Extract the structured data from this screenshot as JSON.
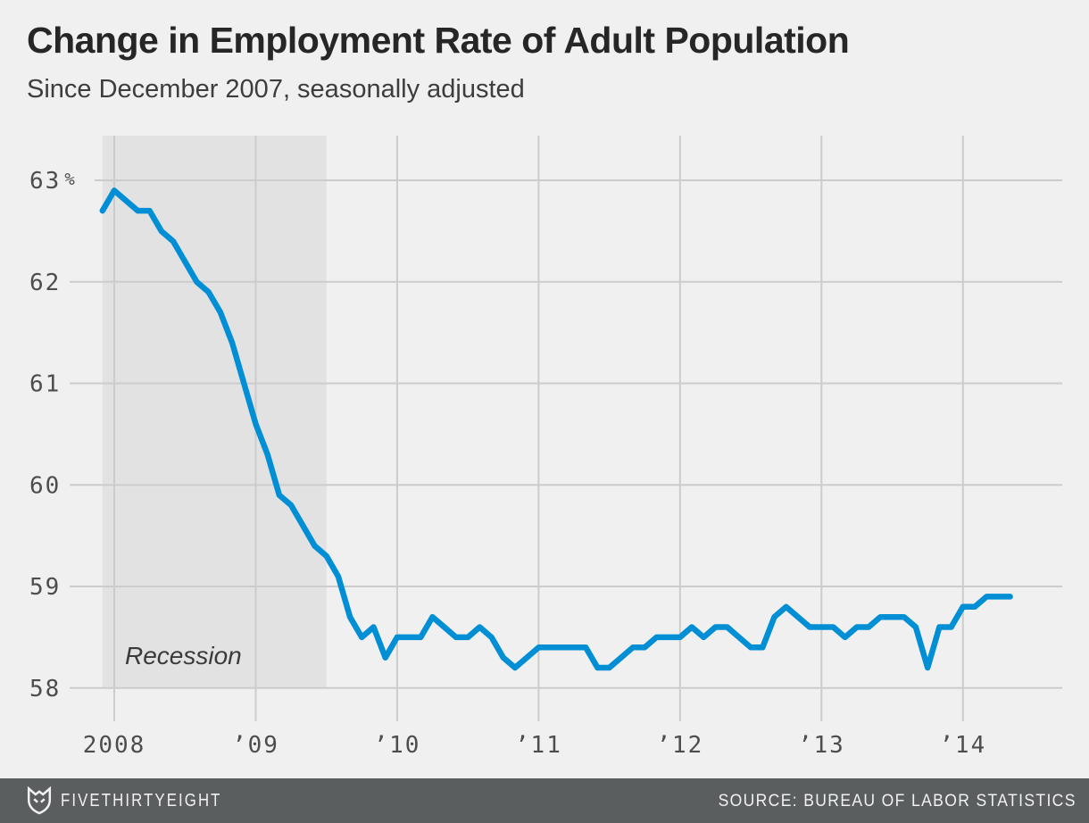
{
  "header": {
    "title": "Change in Employment Rate of Adult Population",
    "subtitle": "Since December 2007, seasonally adjusted"
  },
  "chart_data": {
    "type": "line",
    "title": "Change in Employment Rate of Adult Population",
    "subtitle": "Since December 2007, seasonally adjusted",
    "unit": "%",
    "x_interval": "monthly",
    "x_start": "2007-12",
    "x_end": "2014-05",
    "values": [
      62.7,
      62.9,
      62.8,
      62.7,
      62.7,
      62.5,
      62.4,
      62.2,
      62.0,
      61.9,
      61.7,
      61.4,
      61.0,
      60.6,
      60.3,
      59.9,
      59.8,
      59.6,
      59.4,
      59.3,
      59.1,
      58.7,
      58.5,
      58.6,
      58.3,
      58.5,
      58.5,
      58.5,
      58.7,
      58.6,
      58.5,
      58.5,
      58.6,
      58.5,
      58.3,
      58.2,
      58.3,
      58.4,
      58.4,
      58.4,
      58.4,
      58.4,
      58.2,
      58.2,
      58.3,
      58.4,
      58.4,
      58.5,
      58.5,
      58.5,
      58.6,
      58.5,
      58.6,
      58.6,
      58.5,
      58.4,
      58.4,
      58.7,
      58.8,
      58.7,
      58.6,
      58.6,
      58.6,
      58.5,
      58.6,
      58.6,
      58.7,
      58.7,
      58.7,
      58.6,
      58.2,
      58.6,
      58.6,
      58.8,
      58.8,
      58.9,
      58.9,
      58.9
    ],
    "ylim": [
      57.7,
      63.4
    ],
    "grid": true,
    "legend": "none",
    "y_ticks": [
      {
        "value": 63,
        "label": "63",
        "suffix": "%"
      },
      {
        "value": 62,
        "label": "62"
      },
      {
        "value": 61,
        "label": "61"
      },
      {
        "value": 60,
        "label": "60"
      },
      {
        "value": 59,
        "label": "59"
      },
      {
        "value": 58,
        "label": "58"
      }
    ],
    "x_ticks": [
      {
        "month": "2008-01",
        "label": "2008"
      },
      {
        "month": "2009-01",
        "label": "’09"
      },
      {
        "month": "2010-01",
        "label": "’10"
      },
      {
        "month": "2011-01",
        "label": "’11"
      },
      {
        "month": "2012-01",
        "label": "’12"
      },
      {
        "month": "2013-01",
        "label": "’13"
      },
      {
        "month": "2014-01",
        "label": "’14"
      }
    ],
    "annotations": [
      {
        "text": "Recession",
        "region_start": "2007-12",
        "region_end": "2009-06"
      }
    ],
    "colors": {
      "line": "#008fd5",
      "recession_band": "#e2e2e2",
      "grid": "#cccccc",
      "background": "#f0f0f0",
      "footer_background": "#5a5e5e",
      "footer_text": "#f1f1f1"
    }
  },
  "footer": {
    "brand": "FIVETHIRTYEIGHT",
    "source": "SOURCE: BUREAU OF LABOR STATISTICS"
  }
}
